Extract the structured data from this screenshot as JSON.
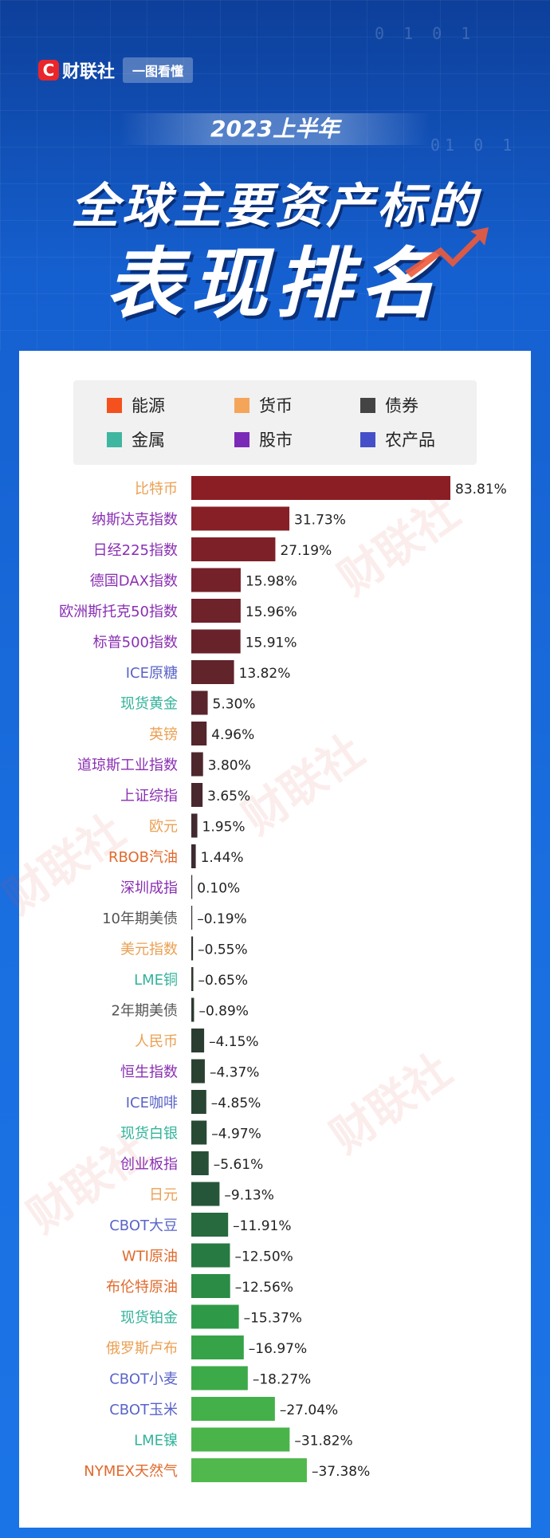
{
  "brand": {
    "name": "财联社",
    "logo_letter": "C",
    "tag": "一图看懂"
  },
  "hero": {
    "binary_1": "0 1 0 1",
    "binary_2": "01 0 1",
    "year": "2023上半年",
    "title_line1": "全球主要资产标的",
    "title_line2": "表现排名"
  },
  "legend": [
    {
      "label": "能源",
      "color": "#f4511e"
    },
    {
      "label": "货币",
      "color": "#f5a55a"
    },
    {
      "label": "债券",
      "color": "#444444"
    },
    {
      "label": "金属",
      "color": "#3fb6a0"
    },
    {
      "label": "股市",
      "color": "#7b2ab8"
    },
    {
      "label": "农产品",
      "color": "#4550c8"
    }
  ],
  "category_colors": {
    "能源": "#e06a2c",
    "货币": "#eba053",
    "债券": "#555555",
    "金属": "#33b39b",
    "股市": "#8a2fb3",
    "农产品": "#5a64c8"
  },
  "watermark": "财联社",
  "chart_data": {
    "type": "bar",
    "orientation": "horizontal",
    "title": "全球主要资产标的表现排名",
    "unit": "%",
    "items": [
      {
        "label": "比特币",
        "value": 83.81,
        "value_label": "83.81%",
        "category": "货币",
        "bar_color": "#8b1e24"
      },
      {
        "label": "纳斯达克指数",
        "value": 31.73,
        "value_label": "31.73%",
        "category": "股市",
        "bar_color": "#861f26"
      },
      {
        "label": "日经225指数",
        "value": 27.19,
        "value_label": "27.19%",
        "category": "股市",
        "bar_color": "#7e2028"
      },
      {
        "label": "德国DAX指数",
        "value": 15.98,
        "value_label": "15.98%",
        "category": "股市",
        "bar_color": "#742129"
      },
      {
        "label": "欧洲斯托克50指数",
        "value": 15.96,
        "value_label": "15.96%",
        "category": "股市",
        "bar_color": "#6e2229"
      },
      {
        "label": "标普500指数",
        "value": 15.91,
        "value_label": "15.91%",
        "category": "股市",
        "bar_color": "#68232a"
      },
      {
        "label": "ICE原糖",
        "value": 13.82,
        "value_label": "13.82%",
        "category": "农产品",
        "bar_color": "#61242b"
      },
      {
        "label": "现货黄金",
        "value": 5.3,
        "value_label": "5.30%",
        "category": "金属",
        "bar_color": "#5a252c"
      },
      {
        "label": "英镑",
        "value": 4.96,
        "value_label": "4.96%",
        "category": "货币",
        "bar_color": "#54262c"
      },
      {
        "label": "道琼斯工业指数",
        "value": 3.8,
        "value_label": "3.80%",
        "category": "股市",
        "bar_color": "#4e272d"
      },
      {
        "label": "上证综指",
        "value": 3.65,
        "value_label": "3.65%",
        "category": "股市",
        "bar_color": "#48282e"
      },
      {
        "label": "欧元",
        "value": 1.95,
        "value_label": "1.95%",
        "category": "货币",
        "bar_color": "#42292f"
      },
      {
        "label": "RBOB汽油",
        "value": 1.44,
        "value_label": "1.44%",
        "category": "能源",
        "bar_color": "#3c2a30"
      },
      {
        "label": "深圳成指",
        "value": 0.1,
        "value_label": "0.10%",
        "category": "股市",
        "bar_color": "#372b30"
      },
      {
        "label": "10年期美债",
        "value": -0.19,
        "value_label": "–0.19%",
        "category": "债券",
        "bar_color": "#33302f"
      },
      {
        "label": "美元指数",
        "value": -0.55,
        "value_label": "–0.55%",
        "category": "货币",
        "bar_color": "#30332f"
      },
      {
        "label": "LME铜",
        "value": -0.65,
        "value_label": "–0.65%",
        "category": "金属",
        "bar_color": "#2e362f"
      },
      {
        "label": "2年期美债",
        "value": -0.89,
        "value_label": "–0.89%",
        "category": "债券",
        "bar_color": "#2c3a30"
      },
      {
        "label": "人民币",
        "value": -4.15,
        "value_label": "–4.15%",
        "category": "货币",
        "bar_color": "#2b3d31"
      },
      {
        "label": "恒生指数",
        "value": -4.37,
        "value_label": "–4.37%",
        "category": "股市",
        "bar_color": "#2a4132"
      },
      {
        "label": "ICE咖啡",
        "value": -4.85,
        "value_label": "–4.85%",
        "category": "农产品",
        "bar_color": "#294533"
      },
      {
        "label": "现货白银",
        "value": -4.97,
        "value_label": "–4.97%",
        "category": "金属",
        "bar_color": "#284a35"
      },
      {
        "label": "创业板指",
        "value": -5.61,
        "value_label": "–5.61%",
        "category": "股市",
        "bar_color": "#274f37"
      },
      {
        "label": "日元",
        "value": -9.13,
        "value_label": "–9.13%",
        "category": "货币",
        "bar_color": "#265639"
      },
      {
        "label": "CBOT大豆",
        "value": -11.91,
        "value_label": "–11.91%",
        "category": "农产品",
        "bar_color": "#266a3e"
      },
      {
        "label": "WTI原油",
        "value": -12.5,
        "value_label": "–12.50%",
        "category": "能源",
        "bar_color": "#277a42"
      },
      {
        "label": "布伦特原油",
        "value": -12.56,
        "value_label": "–12.56%",
        "category": "能源",
        "bar_color": "#2a8c45"
      },
      {
        "label": "现货铂金",
        "value": -15.37,
        "value_label": "–15.37%",
        "category": "金属",
        "bar_color": "#2e9a47"
      },
      {
        "label": "俄罗斯卢布",
        "value": -16.97,
        "value_label": "–16.97%",
        "category": "货币",
        "bar_color": "#36a348"
      },
      {
        "label": "CBOT小麦",
        "value": -18.27,
        "value_label": "–18.27%",
        "category": "农产品",
        "bar_color": "#3daa49"
      },
      {
        "label": "CBOT玉米",
        "value": -27.04,
        "value_label": "–27.04%",
        "category": "农产品",
        "bar_color": "#44b04a"
      },
      {
        "label": "LME镍",
        "value": -31.82,
        "value_label": "–31.82%",
        "category": "金属",
        "bar_color": "#4ab44b"
      },
      {
        "label": "NYMEX天然气",
        "value": -37.38,
        "value_label": "–37.38%",
        "category": "能源",
        "bar_color": "#50b84c"
      }
    ]
  }
}
